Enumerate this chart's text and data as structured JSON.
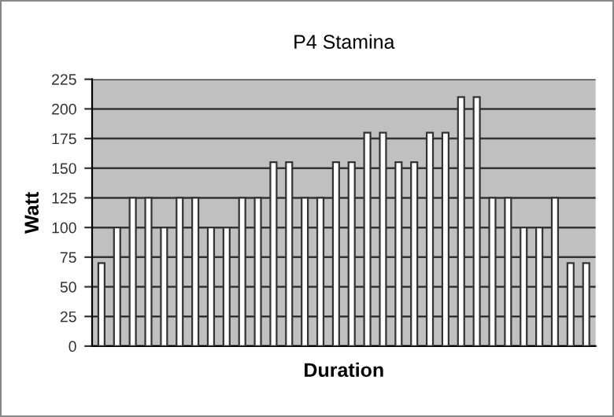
{
  "chart_data": {
    "type": "bar",
    "title": "P4 Stamina",
    "xlabel": "Duration",
    "ylabel": "Watt",
    "categories": [
      null,
      null,
      null,
      null,
      null,
      null,
      null,
      null,
      null,
      null,
      null,
      null,
      null,
      null,
      null,
      null,
      null,
      null,
      null,
      null,
      null,
      null,
      null,
      null,
      null,
      null,
      null,
      null,
      null,
      null,
      null,
      null
    ],
    "values": [
      70,
      100,
      125,
      125,
      100,
      125,
      125,
      100,
      100,
      125,
      125,
      155,
      155,
      125,
      125,
      155,
      155,
      180,
      180,
      155,
      155,
      180,
      180,
      210,
      210,
      125,
      125,
      100,
      100,
      125,
      70,
      70
    ],
    "color": "#ffffff",
    "ylim": [
      0,
      225
    ],
    "yticks": [
      0,
      25,
      50,
      75,
      100,
      125,
      150,
      175,
      200,
      225
    ],
    "grid": "y"
  }
}
